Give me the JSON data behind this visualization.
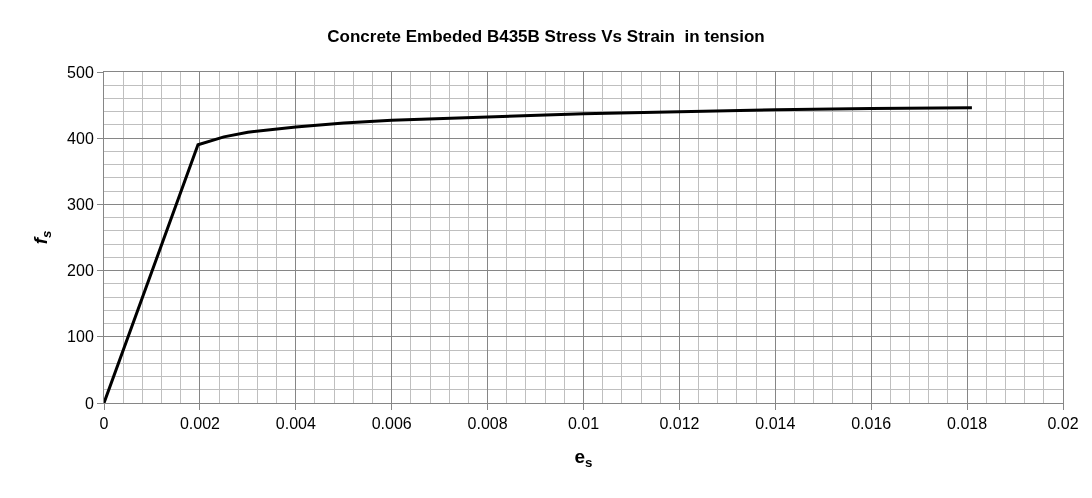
{
  "chart_data": {
    "type": "line",
    "title": "Concrete Embeded B435B Stress Vs Strain  in tension",
    "xlabel": "e$_{s}$",
    "ylabel": "f$_{s}$",
    "series": [
      {
        "color": "#000000",
        "x": [
          0,
          0.00196,
          0.0025,
          0.003,
          0.004,
          0.005,
          0.006,
          0.008,
          0.01,
          0.012,
          0.014,
          0.016,
          0.0181
        ],
        "values": [
          0,
          390,
          402,
          409,
          417,
          423,
          427,
          432,
          437,
          440,
          443,
          445,
          446
        ]
      }
    ],
    "xlim": [
      0,
      0.02
    ],
    "xticks": [
      0,
      0.002,
      0.004,
      0.006,
      0.008,
      0.01,
      0.012,
      0.014,
      0.016,
      0.018,
      0.02
    ],
    "ylim": [
      0,
      500
    ],
    "yticks": [
      0,
      100,
      200,
      300,
      400,
      500
    ],
    "grid": true,
    "marker": "none",
    "line_style": "solid"
  }
}
